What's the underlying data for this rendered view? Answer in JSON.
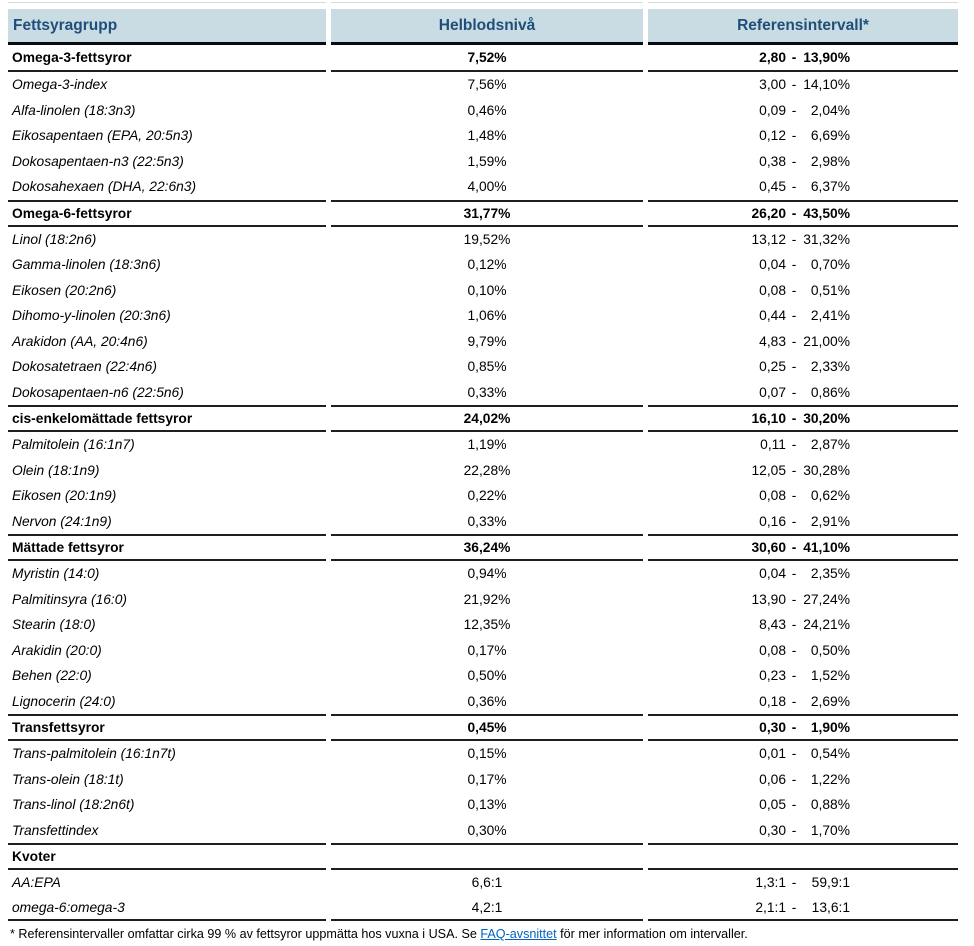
{
  "header": {
    "columns": [
      "Fettsyragrupp",
      "Helblodsnivå",
      "Referensintervall*"
    ]
  },
  "sections": [
    {
      "label": "Omega-3-fettsyror",
      "level": "7,52%",
      "ref_low": "2,80",
      "ref_high": "13,90%",
      "rows": [
        {
          "label": "Omega-3-index",
          "level": "7,56%",
          "ref_low": "3,00",
          "ref_high": "14,10%"
        },
        {
          "label": "Alfa-linolen (18:3n3)",
          "level": "0,46%",
          "ref_low": "0,09",
          "ref_high": "2,04%"
        },
        {
          "label": "Eikosapentaen (EPA, 20:5n3)",
          "level": "1,48%",
          "ref_low": "0,12",
          "ref_high": "6,69%"
        },
        {
          "label": "Dokosapentaen-n3 (22:5n3)",
          "level": "1,59%",
          "ref_low": "0,38",
          "ref_high": "2,98%"
        },
        {
          "label": "Dokosahexaen (DHA, 22:6n3)",
          "level": "4,00%",
          "ref_low": "0,45",
          "ref_high": "6,37%"
        }
      ]
    },
    {
      "label": "Omega-6-fettsyror",
      "level": "31,77%",
      "ref_low": "26,20",
      "ref_high": "43,50%",
      "rows": [
        {
          "label": "Linol (18:2n6)",
          "level": "19,52%",
          "ref_low": "13,12",
          "ref_high": "31,32%"
        },
        {
          "label": "Gamma-linolen (18:3n6)",
          "level": "0,12%",
          "ref_low": "0,04",
          "ref_high": "0,70%"
        },
        {
          "label": "Eikosen (20:2n6)",
          "level": "0,10%",
          "ref_low": "0,08",
          "ref_high": "0,51%"
        },
        {
          "label": "Dihomo-y-linolen (20:3n6)",
          "level": "1,06%",
          "ref_low": "0,44",
          "ref_high": "2,41%"
        },
        {
          "label": "Arakidon (AA, 20:4n6)",
          "level": "9,79%",
          "ref_low": "4,83",
          "ref_high": "21,00%"
        },
        {
          "label": "Dokosatetraen (22:4n6)",
          "level": "0,85%",
          "ref_low": "0,25",
          "ref_high": "2,33%"
        },
        {
          "label": "Dokosapentaen-n6 (22:5n6)",
          "level": "0,33%",
          "ref_low": "0,07",
          "ref_high": "0,86%"
        }
      ]
    },
    {
      "label": "cis-enkelomättade fettsyror",
      "level": "24,02%",
      "ref_low": "16,10",
      "ref_high": "30,20%",
      "rows": [
        {
          "label": "Palmitolein (16:1n7)",
          "level": "1,19%",
          "ref_low": "0,11",
          "ref_high": "2,87%"
        },
        {
          "label": "Olein (18:1n9)",
          "level": "22,28%",
          "ref_low": "12,05",
          "ref_high": "30,28%"
        },
        {
          "label": "Eikosen (20:1n9)",
          "level": "0,22%",
          "ref_low": "0,08",
          "ref_high": "0,62%"
        },
        {
          "label": "Nervon (24:1n9)",
          "level": "0,33%",
          "ref_low": "0,16",
          "ref_high": "2,91%"
        }
      ]
    },
    {
      "label": "Mättade fettsyror",
      "level": "36,24%",
      "ref_low": "30,60",
      "ref_high": "41,10%",
      "rows": [
        {
          "label": "Myristin (14:0)",
          "level": "0,94%",
          "ref_low": "0,04",
          "ref_high": "2,35%"
        },
        {
          "label": "Palmitinsyra (16:0)",
          "level": "21,92%",
          "ref_low": "13,90",
          "ref_high": "27,24%"
        },
        {
          "label": "Stearin (18:0)",
          "level": "12,35%",
          "ref_low": "8,43",
          "ref_high": "24,21%"
        },
        {
          "label": "Arakidin (20:0)",
          "level": "0,17%",
          "ref_low": "0,08",
          "ref_high": "0,50%"
        },
        {
          "label": "Behen (22:0)",
          "level": "0,50%",
          "ref_low": "0,23",
          "ref_high": "1,52%"
        },
        {
          "label": "Lignocerin (24:0)",
          "level": "0,36%",
          "ref_low": "0,18",
          "ref_high": "2,69%"
        }
      ]
    },
    {
      "label": "Transfettsyror",
      "level": "0,45%",
      "ref_low": "0,30",
      "ref_high": "1,90%",
      "rows": [
        {
          "label": "Trans-palmitolein (16:1n7t)",
          "level": "0,15%",
          "ref_low": "0,01",
          "ref_high": "0,54%"
        },
        {
          "label": "Trans-olein (18:1t)",
          "level": "0,17%",
          "ref_low": "0,06",
          "ref_high": "1,22%"
        },
        {
          "label": "Trans-linol (18:2n6t)",
          "level": "0,13%",
          "ref_low": "0,05",
          "ref_high": "0,88%"
        },
        {
          "label": "Transfettindex",
          "level": "0,30%",
          "ref_low": "0,30",
          "ref_high": "1,70%"
        }
      ]
    },
    {
      "label": "Kvoter",
      "level": "",
      "ref_low": "",
      "ref_high": "",
      "rows": [
        {
          "label": "AA:EPA",
          "level": "6,6:1",
          "ref_low": "1,3:1",
          "ref_high": "59,9:1"
        },
        {
          "label": "omega-6:omega-3",
          "level": "4,2:1",
          "ref_low": "2,1:1",
          "ref_high": "13,6:1"
        }
      ]
    }
  ],
  "footnote": {
    "prefix": "* Referensintervaller omfattar cirka 99 % av fettsyror uppmätta hos vuxna i USA. Se ",
    "link": "FAQ-avsnittet",
    "suffix": " för mer information om intervaller."
  },
  "colors": {
    "header_bg": "#c9dce3",
    "header_text": "#1f4e79",
    "section_border": "#1f1f1f",
    "link": "#0563c1"
  }
}
